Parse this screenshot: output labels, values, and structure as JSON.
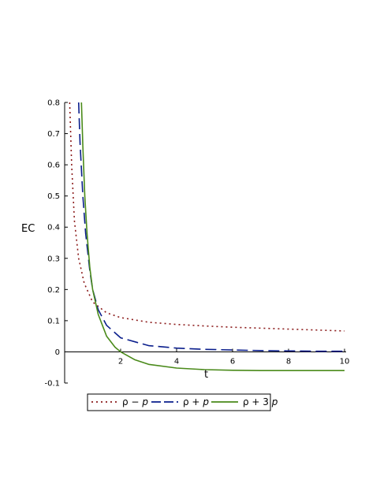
{
  "chart_data": {
    "type": "line",
    "title": "",
    "xlabel": "t",
    "ylabel": "EC",
    "xlim": [
      0,
      10
    ],
    "ylim": [
      -0.1,
      0.8
    ],
    "x_ticks": [
      "2",
      "4",
      "6",
      "8",
      "10"
    ],
    "y_ticks": [
      "-0.1",
      "0",
      "0.1",
      "0.2",
      "0.3",
      "0.4",
      "0.5",
      "0.6",
      "0.7",
      "0.8"
    ],
    "grid": false,
    "legend_position": "bottom",
    "series": [
      {
        "name": "ρ − p",
        "color": "#8b1a1a",
        "style": "dotted",
        "x": [
          0.18,
          0.25,
          0.35,
          0.5,
          0.7,
          1.0,
          1.5,
          2.0,
          3.0,
          4.0,
          5.0,
          6.0,
          7.0,
          8.0,
          9.0,
          10.0
        ],
        "y": [
          0.8,
          0.6,
          0.42,
          0.3,
          0.22,
          0.16,
          0.125,
          0.11,
          0.095,
          0.088,
          0.083,
          0.079,
          0.076,
          0.073,
          0.07,
          0.067
        ]
      },
      {
        "name": "ρ + p",
        "color": "#0a1e8c",
        "style": "dashed",
        "x": [
          0.5,
          0.55,
          0.65,
          0.75,
          0.9,
          1.0,
          1.2,
          1.5,
          2.0,
          3.0,
          4.0,
          5.0,
          6.0,
          7.0,
          8.0,
          9.0,
          10.0
        ],
        "y": [
          0.8,
          0.67,
          0.5,
          0.38,
          0.26,
          0.2,
          0.135,
          0.085,
          0.045,
          0.02,
          0.012,
          0.008,
          0.006,
          0.004,
          0.003,
          0.002,
          0.002
        ]
      },
      {
        "name": "ρ + 3 p",
        "color": "#4a8a1a",
        "style": "solid",
        "x": [
          0.6,
          0.65,
          0.72,
          0.8,
          0.9,
          1.0,
          1.2,
          1.5,
          1.8,
          2.0,
          2.5,
          3.0,
          4.0,
          5.0,
          6.0,
          7.0,
          8.0,
          9.0,
          10.0
        ],
        "y": [
          0.8,
          0.66,
          0.5,
          0.38,
          0.27,
          0.2,
          0.12,
          0.05,
          0.015,
          0.0,
          -0.025,
          -0.04,
          -0.052,
          -0.057,
          -0.059,
          -0.06,
          -0.06,
          -0.06,
          -0.06
        ]
      }
    ]
  },
  "legend": {
    "items": [
      {
        "label_main": "ρ − ",
        "label_it": "p"
      },
      {
        "label_main": "ρ + ",
        "label_it": "p"
      },
      {
        "label_main": "ρ + 3 ",
        "label_it": "p"
      }
    ]
  }
}
